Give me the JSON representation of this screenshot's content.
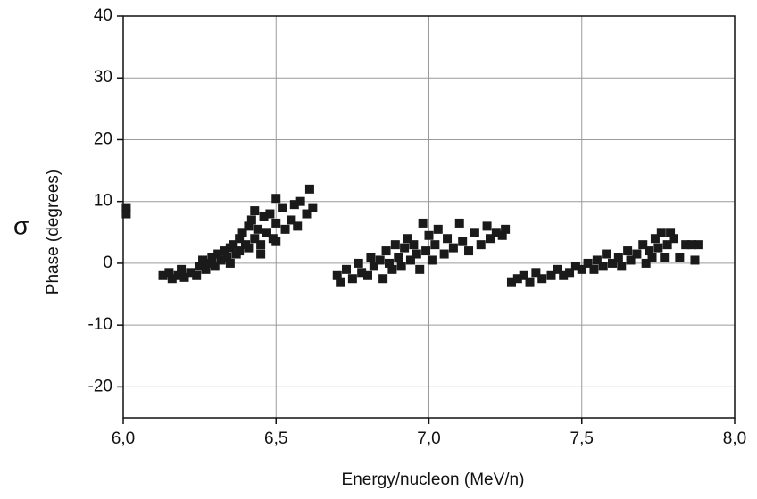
{
  "chart_data": {
    "type": "scatter",
    "xlabel": "Energy/nucleon (MeV/n)",
    "ylabel": "Phase (degrees)",
    "annotation": "σ",
    "color": "#1a1a1a",
    "grid": true,
    "xlim": [
      6.0,
      8.0
    ],
    "ylim": [
      -25,
      40
    ],
    "xticks": [
      {
        "value": 6.0,
        "label": "6,0"
      },
      {
        "value": 6.5,
        "label": "6,5"
      },
      {
        "value": 7.0,
        "label": "7,0"
      },
      {
        "value": 7.5,
        "label": "7,5"
      },
      {
        "value": 8.0,
        "label": "8,0"
      }
    ],
    "yticks": [
      -20,
      -10,
      0,
      10,
      20,
      30,
      40
    ],
    "x": [
      6.01,
      6.01,
      6.13,
      6.15,
      6.16,
      6.18,
      6.19,
      6.2,
      6.22,
      6.24,
      6.25,
      6.26,
      6.27,
      6.28,
      6.29,
      6.3,
      6.31,
      6.32,
      6.33,
      6.34,
      6.35,
      6.35,
      6.36,
      6.37,
      6.38,
      6.38,
      6.39,
      6.4,
      6.41,
      6.41,
      6.42,
      6.43,
      6.43,
      6.44,
      6.45,
      6.46,
      6.47,
      6.48,
      6.49,
      6.5,
      6.5,
      6.52,
      6.53,
      6.55,
      6.56,
      6.57,
      6.58,
      6.6,
      6.61,
      6.62,
      6.45,
      6.5,
      6.7,
      6.71,
      6.73,
      6.75,
      6.77,
      6.78,
      6.8,
      6.81,
      6.82,
      6.84,
      6.85,
      6.86,
      6.87,
      6.88,
      6.89,
      6.9,
      6.91,
      6.92,
      6.93,
      6.94,
      6.95,
      6.96,
      6.97,
      6.98,
      6.99,
      7.0,
      7.01,
      7.02,
      7.03,
      7.05,
      7.06,
      7.08,
      7.1,
      7.11,
      7.13,
      7.15,
      7.17,
      7.19,
      7.2,
      7.22,
      7.24,
      7.25,
      7.27,
      7.29,
      7.31,
      7.33,
      7.35,
      7.37,
      7.4,
      7.42,
      7.44,
      7.46,
      7.48,
      7.5,
      7.52,
      7.54,
      7.55,
      7.57,
      7.58,
      7.6,
      7.62,
      7.63,
      7.65,
      7.66,
      7.68,
      7.7,
      7.71,
      7.72,
      7.73,
      7.74,
      7.75,
      7.76,
      7.77,
      7.78,
      7.79,
      7.8,
      7.82,
      7.84,
      7.86,
      7.87,
      7.88
    ],
    "values": [
      8,
      9,
      -2,
      -1.5,
      -2.5,
      -2,
      -1,
      -2.3,
      -1.5,
      -2,
      -0.5,
      0.5,
      -1,
      0,
      1,
      -0.5,
      1.5,
      0.5,
      2,
      1,
      2.5,
      0,
      3,
      1.5,
      4,
      2,
      5,
      3,
      6,
      2.5,
      7,
      4,
      8.5,
      5.5,
      3,
      7.5,
      5,
      8,
      4,
      6.5,
      10.5,
      9,
      5.5,
      7,
      9.5,
      6,
      10,
      8,
      12,
      9,
      1.5,
      3.5,
      -2,
      -3,
      -1,
      -2.5,
      0,
      -1.5,
      -2,
      1,
      -0.5,
      0.5,
      -2.5,
      2,
      0,
      -1,
      3,
      1,
      -0.5,
      2.5,
      4,
      0.5,
      3,
      1.5,
      -1,
      6.5,
      2,
      4.5,
      0.5,
      3,
      5.5,
      1.5,
      4,
      2.5,
      6.5,
      3.5,
      2,
      5,
      3,
      6,
      4,
      5,
      4.5,
      5.5,
      -3,
      -2.5,
      -2,
      -3,
      -1.5,
      -2.5,
      -2,
      -1,
      -2,
      -1.5,
      -0.5,
      -1,
      0,
      -1,
      0.5,
      -0.5,
      1.5,
      0,
      1,
      -0.5,
      2,
      0.5,
      1.5,
      3,
      0,
      2,
      1,
      4,
      2.5,
      5,
      1,
      3,
      5,
      4,
      1,
      3,
      3,
      0.5,
      3
    ]
  }
}
